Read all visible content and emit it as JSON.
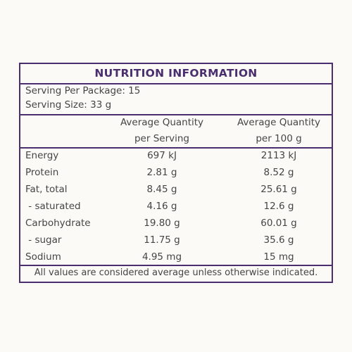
{
  "title": "NUTRITION INFORMATION",
  "serving": [
    "Serving Per Package: 15",
    "Serving Size: 33 g"
  ],
  "table": {
    "header": [
      [
        "Average Quantity",
        "per Serving"
      ],
      [
        "Average Quantity",
        "per 100 g"
      ]
    ],
    "rows": [
      [
        "Energy",
        "697 kJ",
        "2113 kJ"
      ],
      [
        "Protein",
        "2.81 g",
        "8.52 g"
      ],
      [
        "Fat, total",
        "8.45 g",
        "25.61 g"
      ],
      [
        " - saturated",
        "4.16 g",
        "12.6 g"
      ],
      [
        "Carbohydrate",
        "19.80 g",
        "60.01 g"
      ],
      [
        " - sugar",
        "11.75 g",
        "35.6 g"
      ],
      [
        "Sodium",
        "4.95 mg",
        "15 mg"
      ]
    ]
  },
  "footnote": "All values are considered average unless otherwise indicated."
}
